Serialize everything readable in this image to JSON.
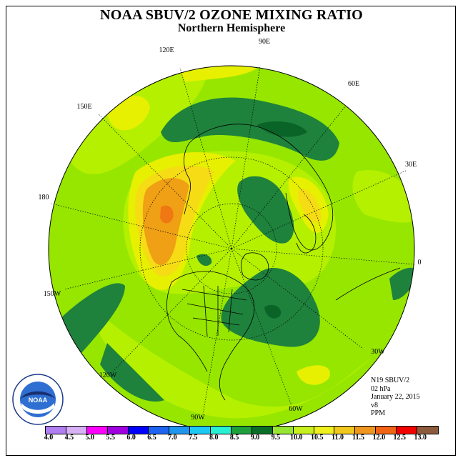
{
  "title": "NOAA SBUV/2 OZONE MIXING RATIO",
  "subtitle": "Northern Hemisphere",
  "longitude_labels": [
    {
      "text": "90E",
      "key": "lon90e"
    },
    {
      "text": "60E",
      "key": "lon60e"
    },
    {
      "text": "120E",
      "key": "lon120e"
    },
    {
      "text": "30E",
      "key": "lon30e"
    },
    {
      "text": "150E",
      "key": "lon150e"
    },
    {
      "text": "180",
      "key": "lon180"
    },
    {
      "text": "0",
      "key": "lon0"
    },
    {
      "text": "150W",
      "key": "lon150w"
    },
    {
      "text": "30W",
      "key": "lon30w"
    },
    {
      "text": "120W",
      "key": "lon120w"
    },
    {
      "text": "60W",
      "key": "lon60w"
    },
    {
      "text": "90W",
      "key": "lon90w"
    }
  ],
  "info": {
    "satellite": "N19 SBUV/2",
    "level": "02 hPa",
    "date": "January 22, 2015",
    "version": "v8",
    "units": "PPM"
  },
  "colorbar": {
    "ticks": [
      "4.0",
      "4.5",
      "5.0",
      "5.5",
      "6.0",
      "6.5",
      "7.0",
      "7.5",
      "8.0",
      "8.5",
      "9.0",
      "9.5",
      "10.0",
      "10.5",
      "11.0",
      "11.5",
      "12.0",
      "12.5",
      "13.0"
    ],
    "colors": [
      "#b07ef0",
      "#d8b0f5",
      "#ff00ff",
      "#a000e0",
      "#0000ff",
      "#1e64f0",
      "#1e96f0",
      "#1ec8f5",
      "#28f0d2",
      "#1ea03c",
      "#0a6e28",
      "#96e632",
      "#c8f01e",
      "#f0f01e",
      "#f0c81e",
      "#f0961e",
      "#f06414",
      "#f00000",
      "#8c5a3c"
    ]
  },
  "logo_text": "NOAA",
  "map_colors": {
    "ocean_base": "#96e600",
    "level_9_5": "#b4f000",
    "level_10": "#e6f000",
    "level_10_5": "#f5dc14",
    "level_11": "#f0a014",
    "level_11_5": "#f07814",
    "level_8_5": "#1e823c",
    "level_9": "#0a6428"
  }
}
